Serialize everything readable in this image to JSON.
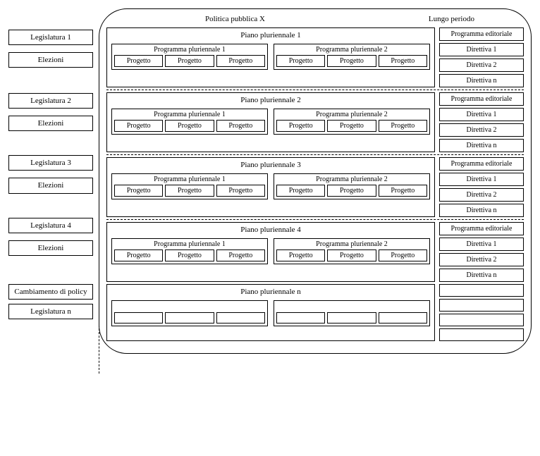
{
  "header": {
    "left_title": "Politica pubblica X",
    "right_title": "Lungo periodo"
  },
  "left": [
    {
      "top_gap": 30,
      "a": "Legislatura 1",
      "b": "Elezioni",
      "gap": 10
    },
    {
      "top_gap": 36,
      "a": "Legislatura 2",
      "b": "Elezioni",
      "gap": 10
    },
    {
      "top_gap": 34,
      "a": "Legislatura 3",
      "b": "Elezioni",
      "gap": 10
    },
    {
      "top_gap": 34,
      "a": "Legislatura 4",
      "b": "Elezioni",
      "gap": 10
    },
    {
      "top_gap": 40,
      "a": "Cambiamento di policy",
      "b": "Legislatura n",
      "gap": 6,
      "multiline": true
    }
  ],
  "plans": [
    {
      "title": "Piano pluriennale 1",
      "programs": [
        {
          "title": "Programma pluriennale 1",
          "projects": [
            "Progetto",
            "Progetto",
            "Progetto"
          ]
        },
        {
          "title": "Programma pluriennale 2",
          "projects": [
            "Progetto",
            "Progetto",
            "Progetto"
          ]
        }
      ],
      "side": [
        "Programma editoriale",
        "Direttiva 1",
        "Direttiva 2",
        "Direttiva n"
      ],
      "dashed_after": true
    },
    {
      "title": "Piano pluriennale 2",
      "programs": [
        {
          "title": "Programma pluriennale 1",
          "projects": [
            "Progetto",
            "Progetto",
            "Progetto"
          ]
        },
        {
          "title": "Programma pluriennale 2",
          "projects": [
            "Progetto",
            "Progetto",
            "Progetto"
          ]
        }
      ],
      "side": [
        "Programma editoriale",
        "Direttiva 1",
        "Direttiva 2",
        "Direttiva n"
      ],
      "dashed_after": true
    },
    {
      "title": "Piano pluriennale 3",
      "programs": [
        {
          "title": "Programma pluriennale 1",
          "projects": [
            "Progetto",
            "Progetto",
            "Progetto"
          ]
        },
        {
          "title": "Programma pluriennale 2",
          "projects": [
            "Progetto",
            "Progetto",
            "Progetto"
          ]
        }
      ],
      "side": [
        "Programma editoriale",
        "Direttiva 1",
        "Direttiva 2",
        "Direttiva n"
      ],
      "dashed_after": true
    },
    {
      "title": "Piano pluriennale 4",
      "programs": [
        {
          "title": "Programma pluriennale 1",
          "projects": [
            "Progetto",
            "Progetto",
            "Progetto"
          ]
        },
        {
          "title": "Programma pluriennale 2",
          "projects": [
            "Progetto",
            "Progetto",
            "Progetto"
          ]
        }
      ],
      "side": [
        "Programma editoriale",
        "Direttiva 1",
        "Direttiva 2",
        "Direttiva n"
      ],
      "dashed_after": false
    },
    {
      "title": "Piano pluriennale n",
      "programs": [
        {
          "title": "",
          "projects": [
            "",
            "",
            ""
          ]
        },
        {
          "title": "",
          "projects": [
            "",
            "",
            ""
          ]
        }
      ],
      "side": [
        "",
        "",
        "",
        ""
      ],
      "empty": true,
      "dashed_after": false
    }
  ],
  "colors": {
    "line": "#000000",
    "bg": "#ffffff"
  },
  "font": {
    "family": "Times New Roman",
    "size_default": 11,
    "size_small": 10
  }
}
